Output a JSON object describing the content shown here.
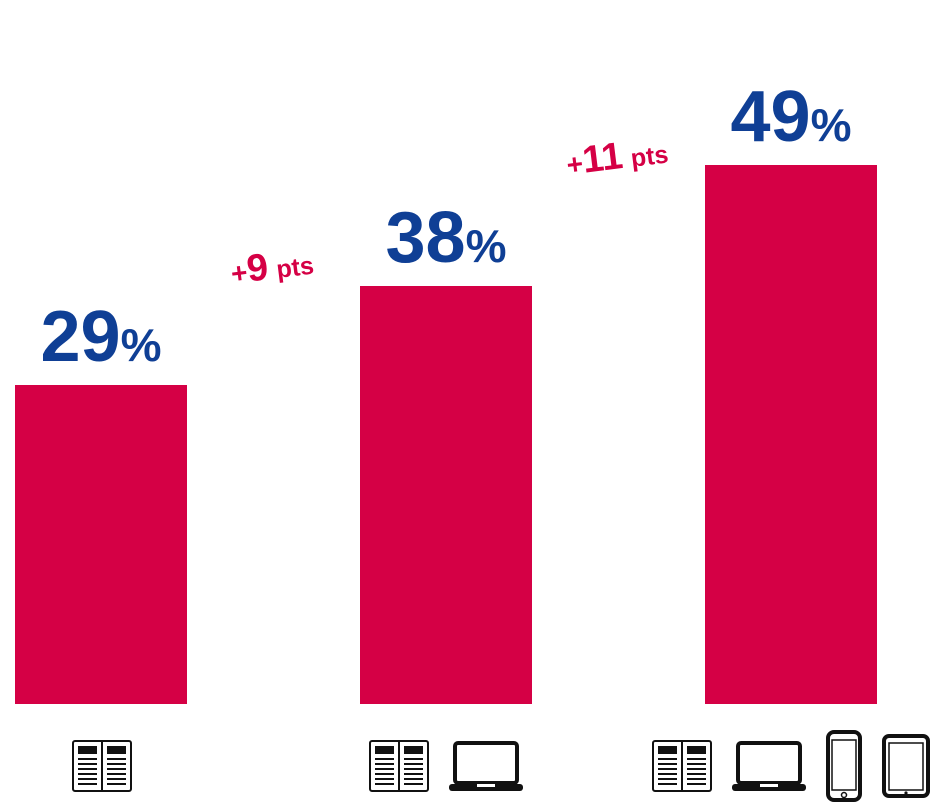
{
  "colors": {
    "bar": "#d50045",
    "value_text": "#0f3f95",
    "delta_text": "#d50045",
    "icon": "#111111"
  },
  "chart_data": {
    "type": "bar",
    "categories": [
      "print",
      "print + laptop",
      "print + laptop + phone + tablet"
    ],
    "values": [
      29,
      38,
      49
    ],
    "value_labels": [
      {
        "number": "29",
        "unit": "%"
      },
      {
        "number": "38",
        "unit": "%"
      },
      {
        "number": "49",
        "unit": "%"
      }
    ],
    "deltas": [
      {
        "sign": "+",
        "number": "9",
        "unit": "pts"
      },
      {
        "sign": "+",
        "number": "11",
        "unit": "pts"
      }
    ],
    "category_icons": [
      [
        "newspaper-icon"
      ],
      [
        "newspaper-icon",
        "laptop-icon"
      ],
      [
        "newspaper-icon",
        "laptop-icon",
        "smartphone-icon",
        "tablet-icon"
      ]
    ],
    "ylim": [
      0,
      60
    ],
    "grid": false,
    "legend": "none"
  }
}
